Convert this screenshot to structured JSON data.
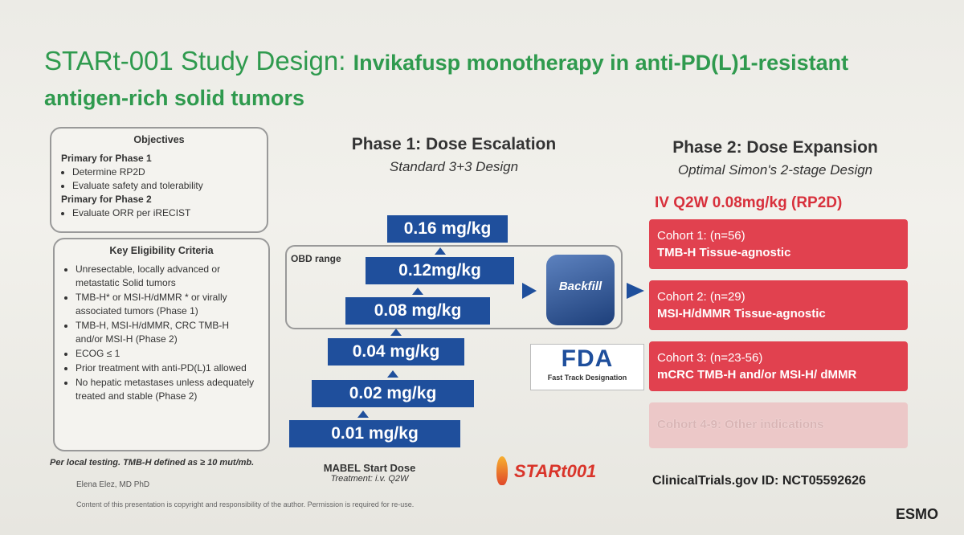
{
  "header": {
    "title": "STARt-001 Study Design:",
    "subtitle": "Invikafusp monotherapy in anti-PD(L)1-resistant antigen-rich solid tumors"
  },
  "objectives": {
    "heading": "Objectives",
    "phase1_label": "Primary for Phase 1",
    "phase1_items": [
      "Determine RP2D",
      "Evaluate safety and tolerability"
    ],
    "phase2_label": "Primary for Phase 2",
    "phase2_items": [
      "Evaluate ORR per iRECIST"
    ]
  },
  "eligibility": {
    "heading": "Key Eligibility Criteria",
    "items": [
      "Unresectable, locally advanced or metastatic Solid tumors",
      "TMB-H* or MSI-H/dMMR * or virally associated tumors (Phase 1)",
      "TMB-H, MSI-H/dMMR, CRC TMB-H and/or MSI-H (Phase 2)",
      "ECOG ≤ 1",
      "Prior treatment with anti-PD(L)1 allowed",
      "No hepatic metastases unless adequately treated and stable (Phase 2)"
    ]
  },
  "phase1": {
    "title": "Phase 1: Dose Escalation",
    "subtitle": "Standard 3+3 Design",
    "obd_label": "OBD range",
    "doses": [
      "0.16 mg/kg",
      "0.12mg/kg",
      "0.08 mg/kg",
      "0.04 mg/kg",
      "0.02 mg/kg",
      "0.01 mg/kg"
    ],
    "backfill": "Backfill",
    "fda_logo": "FDA",
    "fda_caption": "Fast Track Designation",
    "start_dose": "MABEL Start Dose",
    "treatment": "Treatment: i.v. Q2W"
  },
  "phase2": {
    "title": "Phase 2: Dose Expansion",
    "subtitle": "Optimal Simon's 2-stage Design",
    "regimen": "IV Q2W 0.08mg/kg (RP2D)",
    "cohorts": [
      {
        "name": "Cohort 1: (n=56)",
        "desc": "TMB-H Tissue-agnostic"
      },
      {
        "name": "Cohort 2:  (n=29)",
        "desc": "MSI-H/dMMR Tissue-agnostic"
      },
      {
        "name": "Cohort 3: (n=23-56)",
        "desc": "mCRC TMB-H and/or MSI-H/ dMMR"
      },
      {
        "name": "Cohort 4-9: Other indications"
      }
    ]
  },
  "footer": {
    "footnote": "Per local testing. TMB-H defined as ≥ 10 mut/mb.",
    "author": "Elena Elez, MD PhD",
    "copyright": "Content of this presentation is copyright and responsibility of the author. Permission is required for re-use.",
    "logo": "STARt001",
    "trial_id": "ClinicalTrials.gov ID: NCT05592626",
    "esmo": "ESMO"
  }
}
